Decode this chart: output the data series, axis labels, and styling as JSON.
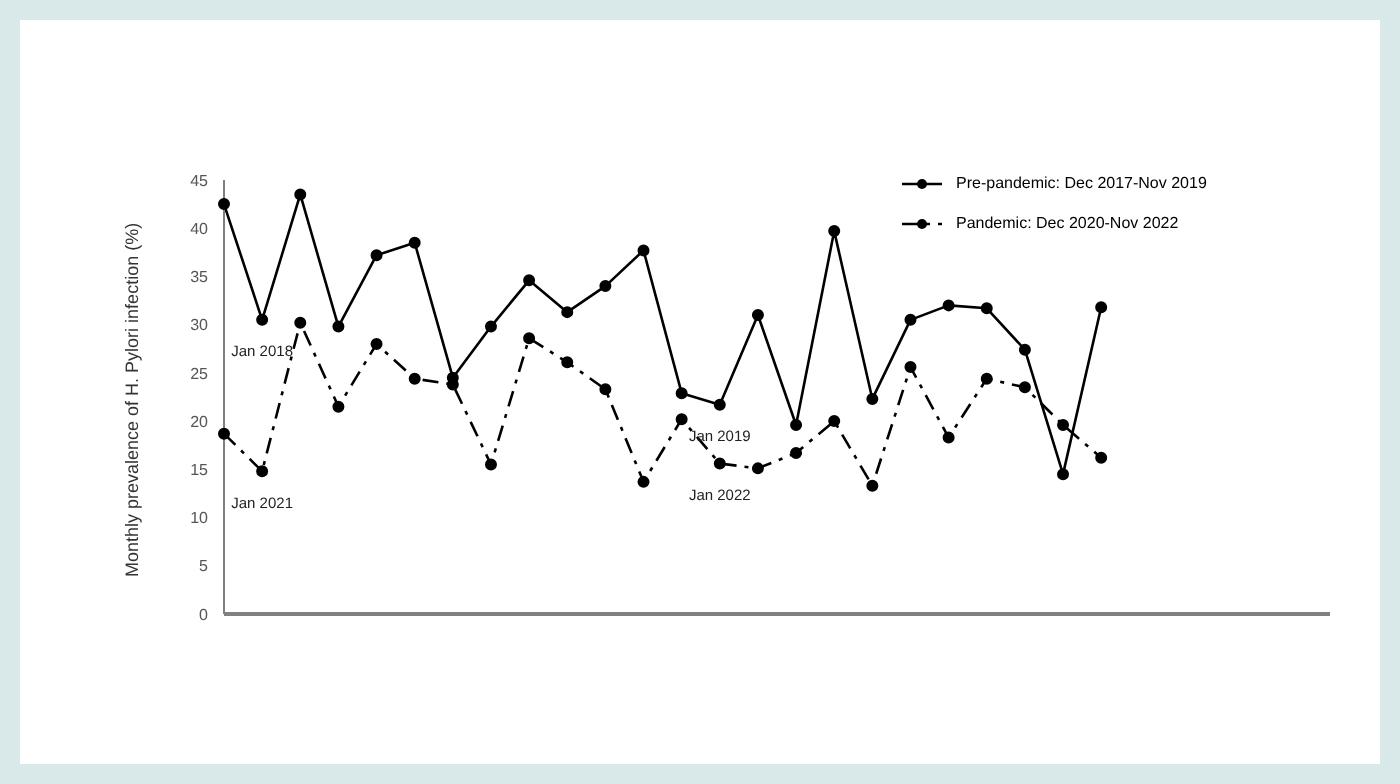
{
  "chart_data": {
    "type": "line",
    "ylabel": "Monthly prevalence of H. Pylori infection (%)",
    "categories": [
      null,
      null,
      null,
      null,
      null,
      null,
      null,
      null,
      null,
      null,
      null,
      null,
      null,
      null,
      null,
      null,
      null,
      null,
      null,
      null,
      null,
      null,
      null,
      null,
      null,
      null,
      null,
      null,
      null,
      null
    ],
    "series": [
      {
        "name": "Pre-pandemic: Dec 2017-Nov 2019",
        "color": "#000000",
        "line_style": "solid",
        "values": [
          42.5,
          30.5,
          43.5,
          29.8,
          37.2,
          38.5,
          24.5,
          29.8,
          34.6,
          31.3,
          34.0,
          37.7,
          22.9,
          21.7,
          31.0,
          19.6,
          39.7,
          22.3,
          30.5,
          32.0,
          31.7,
          27.4,
          14.5,
          31.8,
          null,
          null,
          null,
          null,
          null,
          null
        ]
      },
      {
        "name": "Pandemic: Dec 2020-Nov 2022",
        "color": "#000000",
        "line_style": "dashed",
        "values": [
          18.7,
          14.8,
          30.2,
          21.5,
          28.0,
          24.4,
          23.8,
          15.5,
          28.6,
          26.1,
          23.3,
          13.7,
          20.2,
          15.6,
          15.1,
          16.7,
          20.0,
          13.3,
          25.6,
          18.3,
          24.4,
          23.5,
          19.6,
          16.2,
          null,
          null,
          null,
          null,
          null,
          null
        ]
      }
    ],
    "ylim": [
      0,
      45
    ],
    "yticks": [
      0,
      5,
      10,
      15,
      20,
      25,
      30,
      35,
      40,
      45
    ],
    "grid": false,
    "legend": "top right",
    "marker": "circle",
    "annotations": [
      {
        "text": "Jan 2018",
        "y": 30.5
      },
      {
        "text": "Jan 2021",
        "y": 14.8
      },
      {
        "text": "Jan 2019",
        "y": 21.7
      },
      {
        "text": "Jan 2022",
        "y": 15.6
      }
    ]
  }
}
